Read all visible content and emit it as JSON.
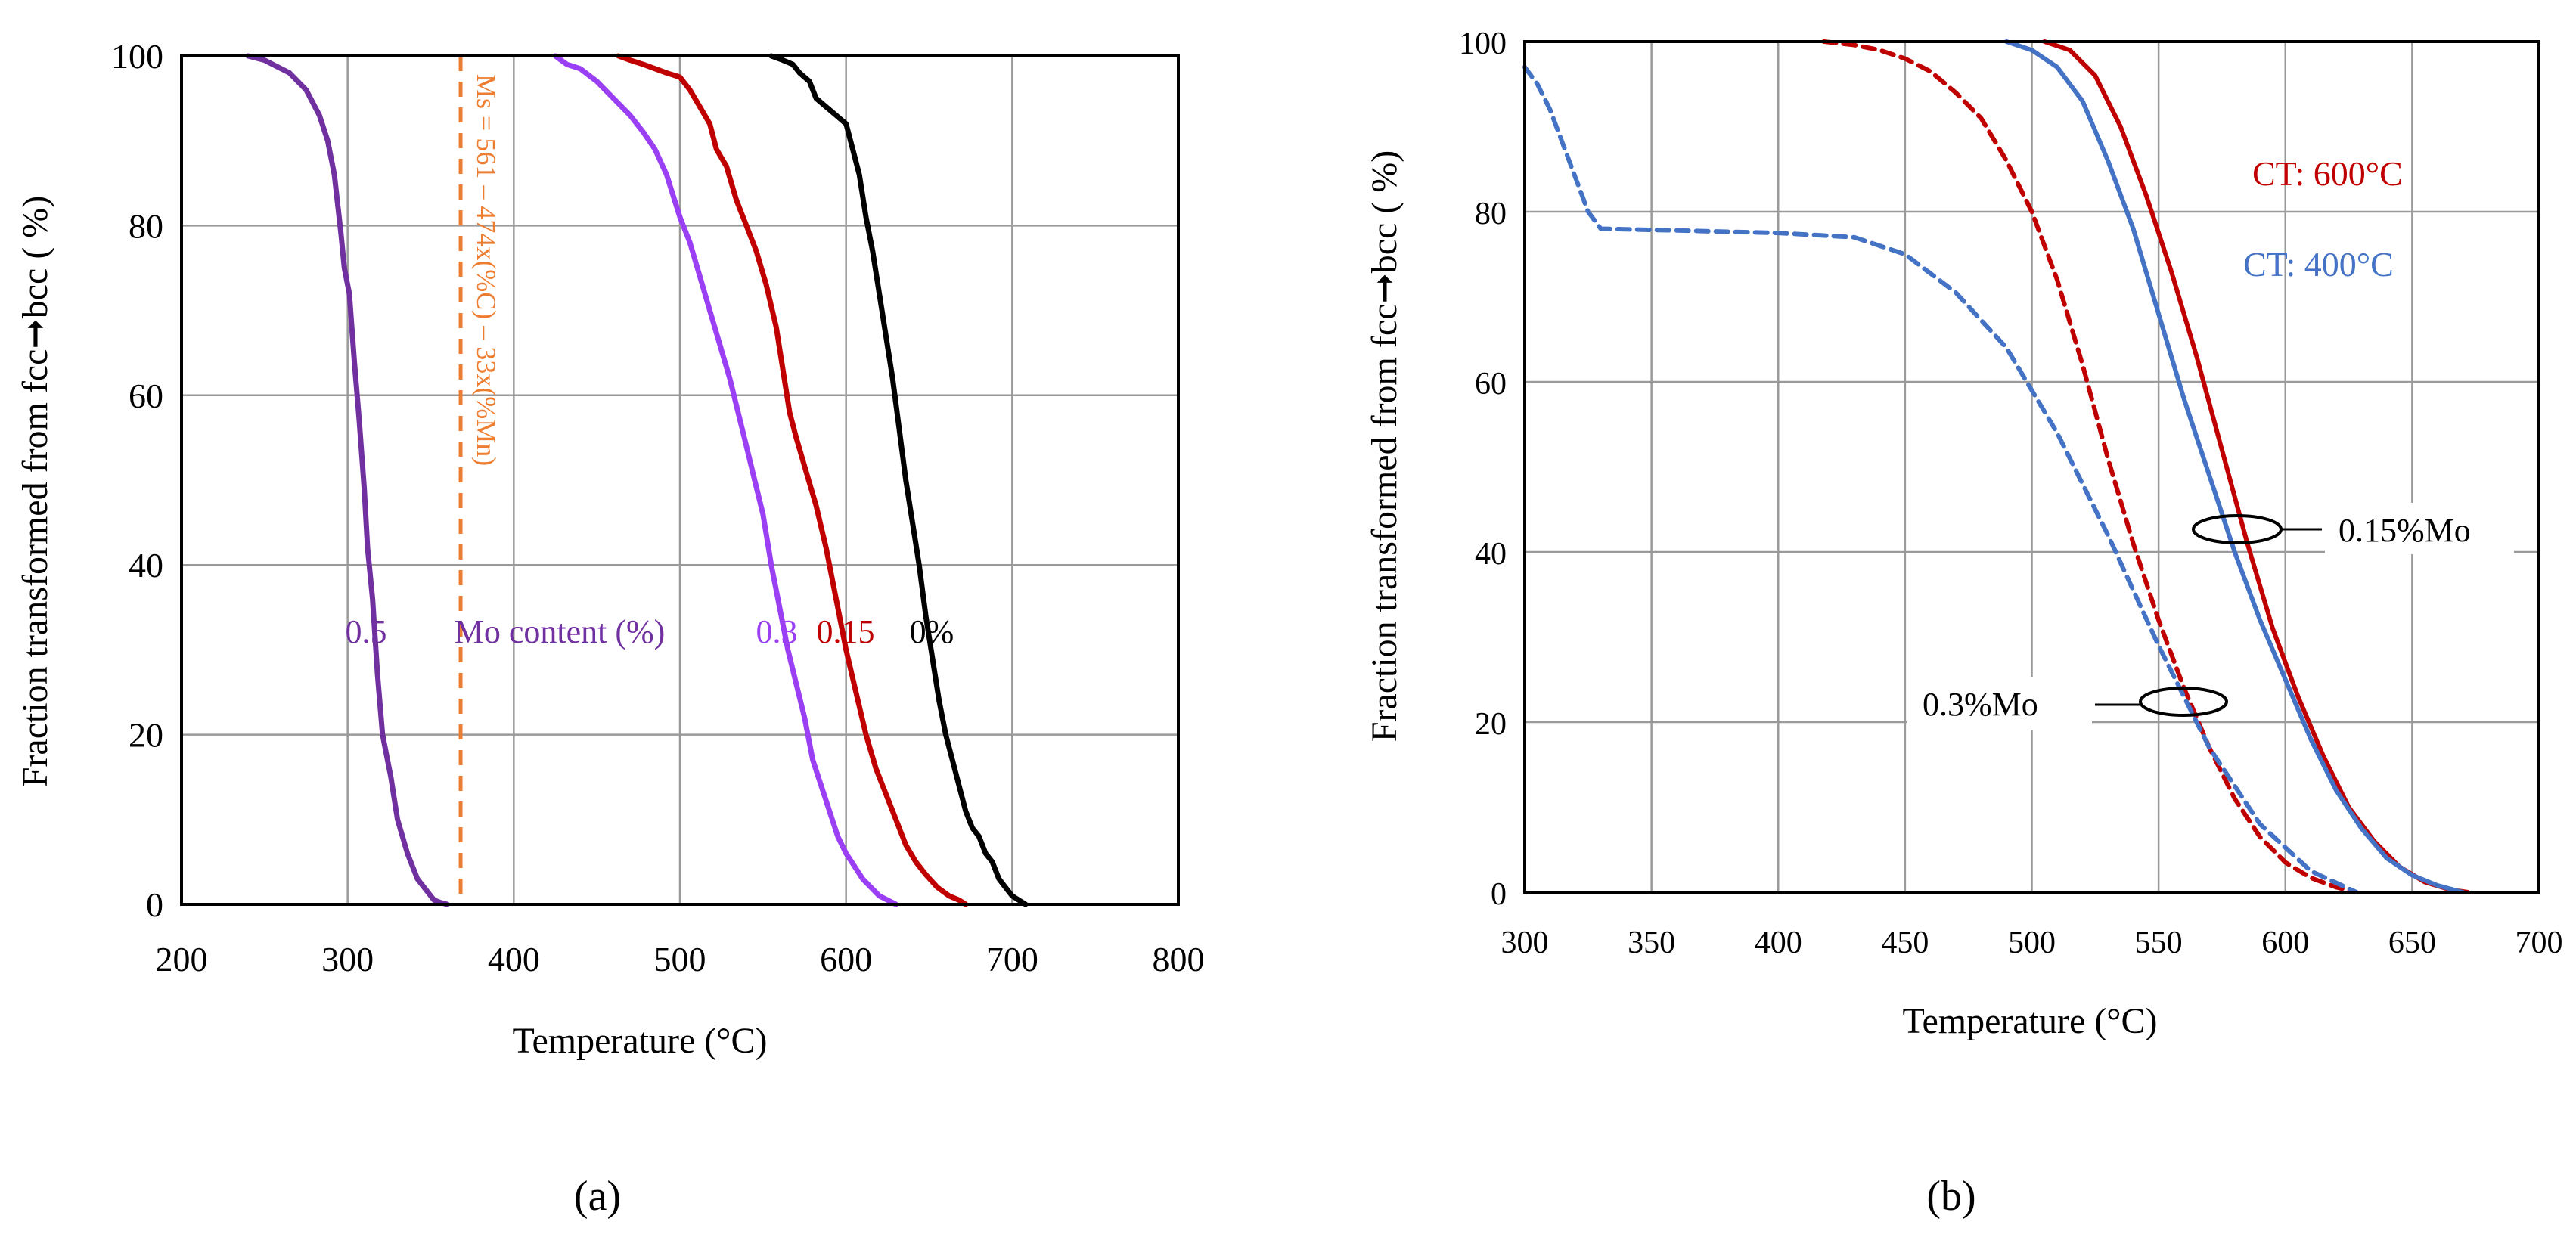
{
  "figure": {
    "panel_a_caption": "(a)",
    "panel_b_caption": "(b)"
  },
  "chart_data": [
    {
      "id": "panel-a",
      "type": "line",
      "title": "",
      "xlabel": "Temperature (°C)",
      "ylabel": "Fraction transformed from fcc➞bcc ( %)",
      "xlim": [
        200,
        800
      ],
      "ylim": [
        0,
        100
      ],
      "xticks": [
        200,
        300,
        400,
        500,
        600,
        700,
        800
      ],
      "yticks": [
        0,
        20,
        40,
        60,
        80,
        100
      ],
      "grid": true,
      "series": [
        {
          "name": "0.5",
          "color": "#7030A0",
          "dash": false,
          "x": [
            240,
            250,
            255,
            265,
            275,
            283,
            288,
            292,
            296,
            298,
            301,
            304,
            307,
            310,
            312,
            315,
            318,
            321,
            326,
            330,
            336,
            342,
            348,
            352,
            356,
            360
          ],
          "y": [
            100,
            99.5,
            99,
            98,
            96,
            93,
            90,
            86,
            79,
            75,
            72,
            64,
            57,
            49,
            42,
            36,
            27,
            20,
            15,
            10,
            6,
            3,
            1.5,
            0.5,
            0.2,
            0
          ]
        },
        {
          "name": "0.3",
          "color": "#9B3FF5",
          "dash": false,
          "x": [
            425,
            432,
            440,
            450,
            460,
            470,
            478,
            485,
            492,
            500,
            506,
            512,
            518,
            524,
            530,
            535,
            540,
            545,
            550,
            555,
            560,
            565,
            570,
            575,
            580,
            585,
            590,
            595,
            600,
            605,
            610,
            615,
            620,
            630
          ],
          "y": [
            100,
            99,
            98.5,
            97,
            95,
            93,
            91,
            89,
            86,
            81,
            78,
            74,
            70,
            66,
            62,
            58,
            54,
            50,
            46,
            40,
            35,
            30,
            26,
            22,
            17,
            14,
            11,
            8,
            6,
            4.5,
            3,
            2,
            1,
            0
          ]
        },
        {
          "name": "0.15",
          "color": "#C00000",
          "dash": false,
          "x": [
            463,
            470,
            478,
            485,
            492,
            500,
            506,
            512,
            518,
            522,
            528,
            534,
            540,
            546,
            552,
            558,
            562,
            566,
            570,
            576,
            582,
            588,
            594,
            600,
            606,
            612,
            618,
            624,
            630,
            636,
            642,
            648,
            655,
            662,
            668,
            672
          ],
          "y": [
            100,
            99.5,
            99,
            98.5,
            98,
            97.5,
            96,
            94,
            92,
            89,
            87,
            83,
            80,
            77,
            73,
            68,
            63,
            58,
            55,
            51,
            47,
            42,
            36,
            30,
            25,
            20,
            16,
            13,
            10,
            7,
            5,
            3.5,
            2,
            1,
            0.5,
            0
          ]
        },
        {
          "name": "0%",
          "color": "#000000",
          "dash": false,
          "x": [
            555,
            562,
            568,
            572,
            578,
            582,
            588,
            594,
            600,
            604,
            608,
            612,
            616,
            620,
            624,
            628,
            632,
            636,
            640,
            644,
            648,
            652,
            656,
            660,
            664,
            668,
            672,
            676,
            680,
            684,
            688,
            692,
            696,
            700,
            704,
            708
          ],
          "y": [
            100,
            99.5,
            99,
            98,
            97,
            95,
            94,
            93,
            92,
            89,
            86,
            81,
            77,
            72,
            67,
            62,
            56,
            50,
            45,
            40,
            34,
            29,
            24,
            20,
            17,
            14,
            11,
            9,
            8,
            6,
            5,
            3,
            2,
            1,
            0.5,
            0
          ]
        }
      ],
      "ms_line": {
        "x": 368,
        "color": "#ED7D31",
        "label": "Ms = 561 – 474x(%C) – 33x(%Mn)"
      },
      "annotations": {
        "label_05": "0.5",
        "label_mo": "Mo content (%)",
        "label_03": "0.3",
        "label_015": "0.15",
        "label_0": "0%"
      }
    },
    {
      "id": "panel-b",
      "type": "line",
      "title": "",
      "xlabel": "Temperature (°C)",
      "ylabel": "Fraction transformed from fcc➞bcc ( %)",
      "xlim": [
        300,
        700
      ],
      "ylim": [
        0,
        100
      ],
      "xticks": [
        300,
        350,
        400,
        450,
        500,
        550,
        600,
        650,
        700
      ],
      "yticks": [
        0,
        20,
        40,
        60,
        80,
        100
      ],
      "grid": true,
      "series": [
        {
          "name": "0.15%Mo CT 600°C",
          "color": "#C00000",
          "dash": false,
          "x": [
            505,
            515,
            525,
            535,
            545,
            555,
            565,
            575,
            585,
            595,
            605,
            615,
            625,
            635,
            645,
            655,
            665,
            672
          ],
          "y": [
            100,
            99,
            96,
            90,
            82,
            73,
            63,
            52,
            41,
            31,
            23,
            16,
            10,
            6,
            3,
            1.2,
            0.3,
            0
          ]
        },
        {
          "name": "0.15%Mo CT 400°C",
          "color": "#4472C4",
          "dash": false,
          "x": [
            490,
            500,
            510,
            520,
            530,
            540,
            550,
            560,
            570,
            580,
            590,
            600,
            610,
            620,
            630,
            640,
            650,
            660,
            670
          ],
          "y": [
            100,
            99,
            97,
            93,
            86,
            78,
            68,
            58,
            49,
            40,
            32,
            25,
            18,
            12,
            7.5,
            4,
            2,
            0.8,
            0
          ]
        },
        {
          "name": "0.3%Mo CT 600°C",
          "color": "#C00000",
          "dash": true,
          "x": [
            418,
            430,
            440,
            450,
            460,
            470,
            480,
            490,
            500,
            510,
            520,
            530,
            540,
            550,
            560,
            570,
            580,
            590,
            600,
            610,
            620,
            628
          ],
          "y": [
            100,
            99.6,
            99,
            98,
            96.5,
            94,
            91,
            86,
            80,
            72,
            62,
            51,
            41,
            32,
            24,
            17,
            11,
            6.5,
            3.5,
            1.7,
            0.6,
            0
          ]
        },
        {
          "name": "0.3%Mo CT 400°C",
          "color": "#4472C4",
          "dash": true,
          "x": [
            300,
            305,
            310,
            315,
            320,
            325,
            330,
            360,
            400,
            430,
            450,
            470,
            490,
            510,
            530,
            550,
            570,
            590,
            610,
            628
          ],
          "y": [
            97,
            95,
            92,
            88,
            84,
            80,
            78,
            77.8,
            77.5,
            77,
            75,
            70.5,
            64,
            54,
            42,
            29,
            17,
            8,
            2.5,
            0
          ]
        }
      ],
      "annotations": {
        "ct600": "CT: 600°C",
        "ct400": "CT: 400°C",
        "mo015": "0.15%Mo",
        "mo03": "0.3%Mo"
      }
    }
  ]
}
